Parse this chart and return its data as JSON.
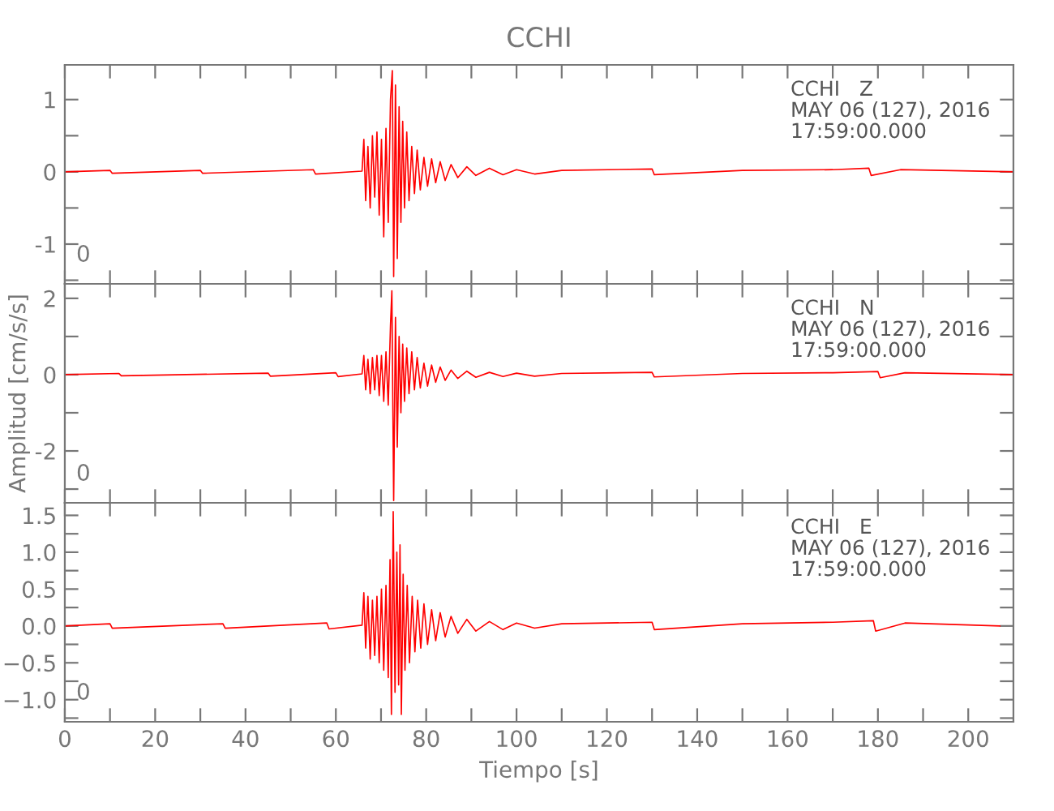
{
  "chart_data": [
    {
      "type": "line",
      "title": "CCHI",
      "line_style": "solid",
      "tick_labels": "y",
      "xlim": [
        0,
        210
      ],
      "xticks": [
        {
          "value": 0,
          "label": null
        },
        {
          "value": 10,
          "label": null
        },
        {
          "value": 20,
          "label": null
        },
        {
          "value": 30,
          "label": null
        },
        {
          "value": 40,
          "label": null
        },
        {
          "value": 50,
          "label": null
        },
        {
          "value": 60,
          "label": null
        },
        {
          "value": 70,
          "label": null
        },
        {
          "value": 80,
          "label": null
        },
        {
          "value": 90,
          "label": null
        },
        {
          "value": 100,
          "label": null
        },
        {
          "value": 110,
          "label": null
        },
        {
          "value": 120,
          "label": null
        },
        {
          "value": 130,
          "label": null
        },
        {
          "value": 140,
          "label": null
        },
        {
          "value": 150,
          "label": null
        },
        {
          "value": 160,
          "label": null
        },
        {
          "value": 170,
          "label": null
        },
        {
          "value": 180,
          "label": null
        },
        {
          "value": 190,
          "label": null
        },
        {
          "value": 200,
          "label": null
        }
      ],
      "ylim": [
        -1.55,
        1.48
      ],
      "yticks": [
        {
          "value": -1.5,
          "label": null
        },
        -1,
        {
          "value": -0.5,
          "label": null
        },
        0,
        {
          "value": 0.5,
          "label": null
        },
        1
      ],
      "annotations": [
        "CCHI   Z\nMAY 06 (127), 2016\n17:59:00.000",
        "0"
      ],
      "series": [
        {
          "color": "#ff0000",
          "x": [
            0,
            10,
            10.5,
            30,
            30.5,
            55,
            55.5,
            65.8,
            66.2,
            66.6,
            67.1,
            67.6,
            68.1,
            68.6,
            69.1,
            69.6,
            70.1,
            70.6,
            71.1,
            71.6,
            72.1,
            72.5,
            72.8,
            73.2,
            73.6,
            74.0,
            74.4,
            74.8,
            75.2,
            75.7,
            76.2,
            76.8,
            77.4,
            78,
            78.7,
            79.5,
            80.3,
            81.2,
            82.1,
            83.1,
            84.2,
            85.5,
            87,
            89,
            91,
            94,
            97,
            100,
            104,
            110,
            130,
            130.5,
            150,
            170,
            178,
            178.5,
            185,
            210
          ],
          "values": [
            0,
            0.02,
            -0.02,
            0.02,
            -0.02,
            0.03,
            -0.03,
            0.01,
            0.45,
            -0.4,
            0.35,
            -0.5,
            0.5,
            -0.35,
            0.55,
            -0.6,
            0.45,
            -0.9,
            0.6,
            -0.7,
            1.0,
            1.4,
            -1.45,
            1.2,
            -1.2,
            0.9,
            -0.7,
            0.7,
            -0.5,
            0.55,
            -0.4,
            0.35,
            -0.3,
            0.3,
            -0.25,
            0.2,
            -0.2,
            0.18,
            -0.15,
            0.14,
            -0.12,
            0.1,
            -0.08,
            0.07,
            -0.05,
            0.05,
            -0.04,
            0.03,
            -0.03,
            0.02,
            0.04,
            -0.04,
            0.02,
            0.03,
            0.05,
            -0.05,
            0.03,
            0
          ]
        }
      ]
    },
    {
      "type": "line",
      "ylabel": "Amplitud [cm/s/s]",
      "line_style": "solid",
      "tick_labels": "y",
      "xlim": [
        0,
        210
      ],
      "xticks": [
        {
          "value": 0,
          "label": null
        },
        {
          "value": 10,
          "label": null
        },
        {
          "value": 20,
          "label": null
        },
        {
          "value": 30,
          "label": null
        },
        {
          "value": 40,
          "label": null
        },
        {
          "value": 50,
          "label": null
        },
        {
          "value": 60,
          "label": null
        },
        {
          "value": 70,
          "label": null
        },
        {
          "value": 80,
          "label": null
        },
        {
          "value": 90,
          "label": null
        },
        {
          "value": 100,
          "label": null
        },
        {
          "value": 110,
          "label": null
        },
        {
          "value": 120,
          "label": null
        },
        {
          "value": 130,
          "label": null
        },
        {
          "value": 140,
          "label": null
        },
        {
          "value": 150,
          "label": null
        },
        {
          "value": 160,
          "label": null
        },
        {
          "value": 170,
          "label": null
        },
        {
          "value": 180,
          "label": null
        },
        {
          "value": 190,
          "label": null
        },
        {
          "value": 200,
          "label": null
        }
      ],
      "ylim": [
        -3.36,
        2.38
      ],
      "yticks": [
        {
          "value": -3,
          "label": null
        },
        -2,
        {
          "value": -1,
          "label": null
        },
        0,
        {
          "value": 1,
          "label": null
        },
        2
      ],
      "annotations": [
        "CCHI   N\nMAY 06 (127), 2016\n17:59:00.000",
        "0"
      ],
      "series": [
        {
          "color": "#ff0000",
          "x": [
            0,
            12,
            12.5,
            45,
            45.5,
            60,
            60.5,
            65.8,
            66.2,
            66.6,
            67.1,
            67.6,
            68.1,
            68.6,
            69.1,
            69.6,
            70.1,
            70.6,
            71.1,
            71.6,
            72.1,
            72.4,
            72.8,
            73.2,
            73.6,
            74.0,
            74.4,
            74.8,
            75.2,
            75.7,
            76.2,
            76.8,
            77.4,
            78,
            78.7,
            79.5,
            80.3,
            81.2,
            82.1,
            83.1,
            84.2,
            85.5,
            87,
            89,
            91,
            94,
            97,
            100,
            104,
            110,
            130,
            130.5,
            150,
            170,
            180,
            180.5,
            186,
            210
          ],
          "values": [
            0,
            0.03,
            -0.03,
            0.04,
            -0.04,
            0.05,
            -0.05,
            0.02,
            0.5,
            -0.4,
            0.4,
            -0.5,
            0.45,
            -0.4,
            0.5,
            -0.55,
            0.5,
            -0.7,
            0.6,
            -0.8,
            1.3,
            2.2,
            -3.3,
            1.5,
            -1.9,
            1.0,
            -1.0,
            0.8,
            -0.7,
            0.7,
            -0.5,
            0.6,
            -0.4,
            0.45,
            -0.35,
            0.3,
            -0.3,
            0.25,
            -0.2,
            0.2,
            -0.15,
            0.12,
            -0.1,
            0.09,
            -0.07,
            0.06,
            -0.05,
            0.04,
            -0.04,
            0.03,
            0.06,
            -0.06,
            0.03,
            0.05,
            0.08,
            -0.08,
            0.05,
            0
          ]
        }
      ]
    },
    {
      "type": "line",
      "xlabel": "Tiempo [s]",
      "line_style": "solid",
      "xlim": [
        0,
        210
      ],
      "xticks": [
        0,
        {
          "value": 10,
          "label": null
        },
        20,
        {
          "value": 30,
          "label": null
        },
        40,
        {
          "value": 50,
          "label": null
        },
        60,
        {
          "value": 70,
          "label": null
        },
        80,
        {
          "value": 90,
          "label": null
        },
        100,
        {
          "value": 110,
          "label": null
        },
        120,
        {
          "value": 130,
          "label": null
        },
        140,
        {
          "value": 150,
          "label": null
        },
        160,
        {
          "value": 170,
          "label": null
        },
        180,
        {
          "value": 190,
          "label": null
        },
        200
      ],
      "ylim": [
        -1.3,
        1.67
      ],
      "yticks": [
        {
          "value": -1.25,
          "label": null
        },
        {
          "value": -1.0,
          "label": "−1.0"
        },
        {
          "value": -0.75,
          "label": null
        },
        {
          "value": -0.5,
          "label": "−0.5"
        },
        {
          "value": -0.25,
          "label": null
        },
        {
          "value": 0,
          "label": "0.0"
        },
        {
          "value": 0.25,
          "label": null
        },
        {
          "value": 0.5,
          "label": "0.5"
        },
        {
          "value": 0.75,
          "label": null
        },
        {
          "value": 1.0,
          "label": "1.0"
        },
        {
          "value": 1.25,
          "label": null
        },
        {
          "value": 1.5,
          "label": "1.5"
        }
      ],
      "annotations": [
        "CCHI   E\nMAY 06 (127), 2016\n17:59:00.000",
        "0"
      ],
      "series": [
        {
          "color": "#ff0000",
          "x": [
            0,
            10,
            10.5,
            35,
            35.5,
            58,
            58.5,
            65.8,
            66.2,
            66.6,
            67.1,
            67.6,
            68.1,
            68.6,
            69.1,
            69.6,
            70.1,
            70.6,
            71.1,
            71.6,
            72.0,
            72.3,
            72.7,
            73.1,
            73.5,
            73.9,
            74.2,
            74.5,
            74.9,
            75.3,
            75.8,
            76.3,
            76.9,
            77.5,
            78.1,
            78.8,
            79.5,
            80.3,
            81.2,
            82.1,
            83.1,
            84.2,
            85.5,
            87,
            89,
            91,
            94,
            97,
            100,
            104,
            110,
            130,
            130.5,
            150,
            170,
            179,
            179.5,
            186,
            207
          ],
          "values": [
            0,
            0.03,
            -0.03,
            0.03,
            -0.03,
            0.04,
            -0.04,
            0.01,
            0.45,
            -0.3,
            0.4,
            -0.45,
            0.35,
            -0.4,
            0.4,
            -0.5,
            0.5,
            -0.6,
            0.55,
            -0.7,
            0.9,
            -1.2,
            1.55,
            -0.9,
            1.0,
            -0.8,
            1.1,
            -1.2,
            0.7,
            -0.6,
            0.55,
            -0.5,
            0.4,
            -0.35,
            0.35,
            -0.3,
            0.3,
            -0.25,
            0.22,
            -0.2,
            0.18,
            -0.15,
            0.13,
            -0.1,
            0.09,
            -0.07,
            0.06,
            -0.05,
            0.04,
            -0.03,
            0.03,
            0.05,
            -0.05,
            0.03,
            0.05,
            0.07,
            -0.07,
            0.04,
            0
          ]
        }
      ]
    }
  ]
}
